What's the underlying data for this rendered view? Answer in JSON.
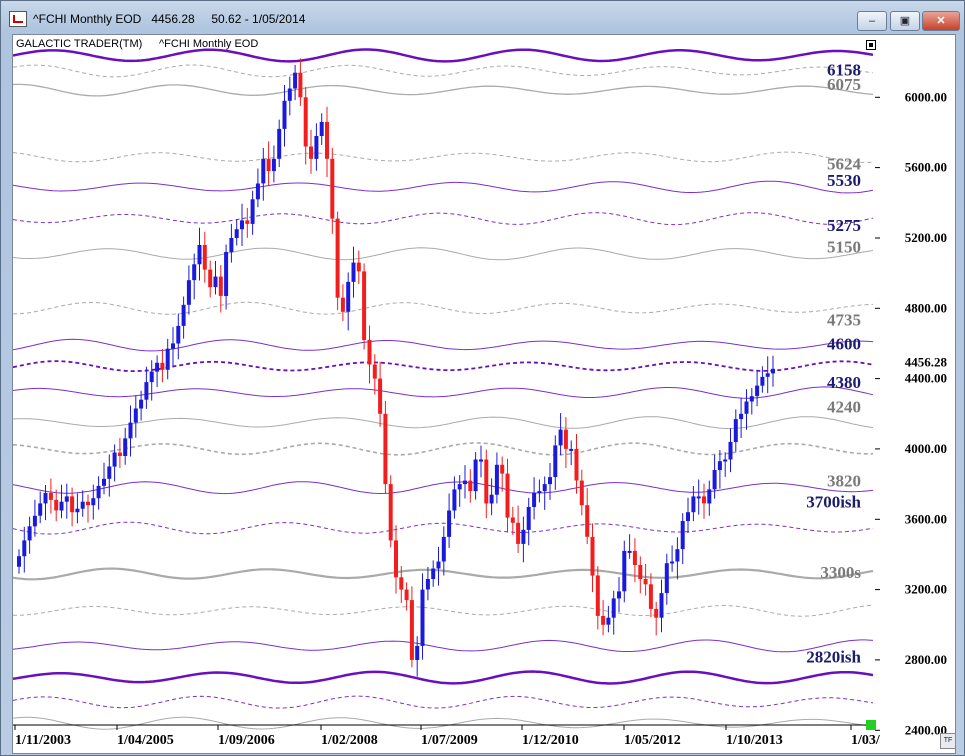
{
  "window": {
    "title": "^FCHI Monthly EOD   4456.28     50.62 - 1/05/2014",
    "minimize_icon": "minimize-icon",
    "maximize_icon": "maximize-icon",
    "close_icon": "close-icon"
  },
  "chart_data": {
    "type": "candlestick",
    "header_left": "GALACTIC TRADER(TM)",
    "header_symbol": "^FCHI Monthly EOD",
    "last_price_label": "4456.28",
    "last_price": 4456.28,
    "ylim": [
      2400,
      6300
    ],
    "y_ticks": [
      {
        "value": 2400,
        "label": "2400.00"
      },
      {
        "value": 2800,
        "label": "2800.00"
      },
      {
        "value": 3200,
        "label": "3200.00"
      },
      {
        "value": 3600,
        "label": "3600.00"
      },
      {
        "value": 4000,
        "label": "4000.00"
      },
      {
        "value": 4400,
        "label": "4400.00"
      },
      {
        "value": 4800,
        "label": "4800.00"
      },
      {
        "value": 5200,
        "label": "5200.00"
      },
      {
        "value": 5600,
        "label": "5600.00"
      },
      {
        "value": 6000,
        "label": "6000.00"
      }
    ],
    "x_ticks": [
      "1/11/2003",
      "1/04/2005",
      "1/09/2006",
      "1/02/2008",
      "1/07/2009",
      "1/12/2010",
      "1/05/2012",
      "1/10/2013",
      "1/03/"
    ],
    "up_color": "#1a1adc",
    "down_color": "#f21e1e",
    "level_labels": [
      {
        "text": "6158",
        "value": 6158,
        "color": "#1c1c6e"
      },
      {
        "text": "6075",
        "value": 6075,
        "color": "#7a7a7a"
      },
      {
        "text": "5624",
        "value": 5624,
        "color": "#7a7a7a"
      },
      {
        "text": "5530",
        "value": 5530,
        "color": "#1c1c6e"
      },
      {
        "text": "5275",
        "value": 5275,
        "color": "#1c1c6e"
      },
      {
        "text": "5150",
        "value": 5150,
        "color": "#7a7a7a"
      },
      {
        "text": "4735",
        "value": 4735,
        "color": "#7a7a7a"
      },
      {
        "text": "4600",
        "value": 4600,
        "color": "#1c1c6e"
      },
      {
        "text": "4380",
        "value": 4380,
        "color": "#1c1c6e"
      },
      {
        "text": "4240",
        "value": 4240,
        "color": "#7a7a7a"
      },
      {
        "text": "3820",
        "value": 3820,
        "color": "#7a7a7a"
      },
      {
        "text": "3700ish",
        "value": 3700,
        "color": "#1c1c6e"
      },
      {
        "text": "3300s",
        "value": 3300,
        "color": "#7a7a7a"
      },
      {
        "text": "2820ish",
        "value": 2820,
        "color": "#1c1c6e"
      }
    ],
    "wave_lines": [
      {
        "base": 6238,
        "color": "#6a0fc0",
        "width": 2.5,
        "dash": ""
      },
      {
        "base": 6150,
        "color": "#aaaaaa",
        "width": 1,
        "dash": "4,3"
      },
      {
        "base": 6040,
        "color": "#aaaaaa",
        "width": 1.3,
        "dash": ""
      },
      {
        "base": 5660,
        "color": "#aaaaaa",
        "width": 1,
        "dash": "4,3"
      },
      {
        "base": 5490,
        "color": "#7a2fd0",
        "width": 1,
        "dash": ""
      },
      {
        "base": 5310,
        "color": "#7a2fd0",
        "width": 1,
        "dash": "4,3"
      },
      {
        "base": 5110,
        "color": "#aaaaaa",
        "width": 1,
        "dash": ""
      },
      {
        "base": 4800,
        "color": "#aaaaaa",
        "width": 1,
        "dash": "4,3"
      },
      {
        "base": 4590,
        "color": "#7a2fd0",
        "width": 1,
        "dash": ""
      },
      {
        "base": 4470,
        "color": "#6a0fc0",
        "width": 1.8,
        "dash": "4,3"
      },
      {
        "base": 4320,
        "color": "#7a2fd0",
        "width": 1,
        "dash": ""
      },
      {
        "base": 4150,
        "color": "#aaaaaa",
        "width": 1,
        "dash": ""
      },
      {
        "base": 4000,
        "color": "#aaaaaa",
        "width": 1.6,
        "dash": "4,3"
      },
      {
        "base": 3780,
        "color": "#7a2fd0",
        "width": 1,
        "dash": ""
      },
      {
        "base": 3550,
        "color": "#7a2fd0",
        "width": 1,
        "dash": "4,3"
      },
      {
        "base": 3290,
        "color": "#aaaaaa",
        "width": 2.2,
        "dash": ""
      },
      {
        "base": 3080,
        "color": "#aaaaaa",
        "width": 1,
        "dash": "4,3"
      },
      {
        "base": 2880,
        "color": "#7a2fd0",
        "width": 1,
        "dash": ""
      },
      {
        "base": 2700,
        "color": "#6a0fc0",
        "width": 2.5,
        "dash": ""
      },
      {
        "base": 2560,
        "color": "#7a2fd0",
        "width": 1,
        "dash": "4,3"
      },
      {
        "base": 2440,
        "color": "#aaaaaa",
        "width": 1,
        "dash": ""
      }
    ],
    "closes": [
      3390,
      3480,
      3560,
      3620,
      3690,
      3750,
      3710,
      3650,
      3700,
      3730,
      3640,
      3660,
      3700,
      3680,
      3720,
      3790,
      3830,
      3900,
      3980,
      3960,
      4060,
      4150,
      4230,
      4280,
      4380,
      4440,
      4490,
      4450,
      4570,
      4600,
      4700,
      4820,
      4960,
      5050,
      5160,
      5020,
      4920,
      4980,
      4870,
      5120,
      5200,
      5250,
      5300,
      5280,
      5420,
      5510,
      5650,
      5580,
      5650,
      5820,
      5980,
      6050,
      6140,
      6000,
      5720,
      5650,
      5780,
      5860,
      5650,
      5310,
      4860,
      4780,
      4950,
      5060,
      5010,
      4620,
      4480,
      4400,
      4200,
      3800,
      3480,
      3270,
      3200,
      3140,
      2800,
      2880,
      3200,
      3260,
      3320,
      3360,
      3500,
      3650,
      3770,
      3800,
      3820,
      3760,
      3940,
      3940,
      3690,
      3740,
      3910,
      3860,
      3610,
      3580,
      3460,
      3540,
      3670,
      3750,
      3760,
      3800,
      3840,
      4020,
      4110,
      4000,
      4000,
      3820,
      3680,
      3500,
      3280,
      3050,
      3000,
      3040,
      3150,
      3190,
      3420,
      3420,
      3340,
      3260,
      3230,
      3090,
      3040,
      3180,
      3350,
      3360,
      3430,
      3590,
      3640,
      3730,
      3730,
      3690,
      3770,
      3880,
      3930,
      3940,
      4040,
      4170,
      4200,
      4270,
      4300,
      4360,
      4410,
      4430,
      4456
    ]
  }
}
